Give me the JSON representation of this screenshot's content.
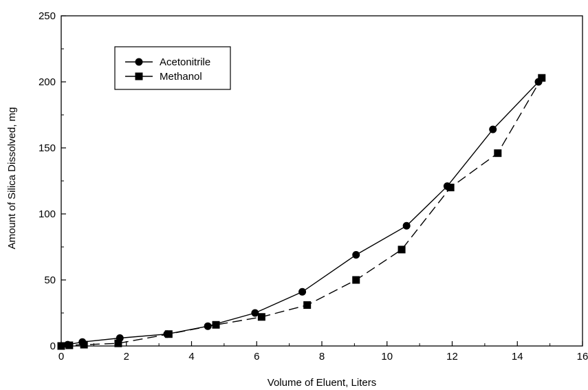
{
  "chart_data": {
    "type": "line",
    "xlabel": "Volume of Eluent, Liters",
    "ylabel": "Amount of Silica Dissolved, mg",
    "xlim": [
      0,
      16
    ],
    "ylim": [
      0,
      250
    ],
    "xticks": [
      "0",
      "2",
      "4",
      "6",
      "8",
      "10",
      "12",
      "14",
      "16"
    ],
    "yticks": [
      "0",
      "50",
      "100",
      "150",
      "200",
      "250"
    ],
    "grid": false,
    "legend_position": "top-left",
    "series": [
      {
        "name": "Acetonitrile",
        "marker": "circle",
        "line_style": "solid",
        "color": "#000000",
        "x": [
          0.0,
          0.2,
          0.65,
          1.8,
          3.25,
          4.5,
          5.95,
          7.4,
          9.05,
          10.6,
          11.85,
          13.25,
          14.65
        ],
        "y": [
          0,
          1,
          3,
          6,
          9,
          15,
          25,
          41,
          69,
          91,
          121,
          164,
          200
        ]
      },
      {
        "name": "Methanol",
        "marker": "square",
        "line_style": "dashed",
        "color": "#000000",
        "x": [
          0.0,
          0.25,
          0.7,
          1.75,
          3.3,
          4.75,
          6.15,
          7.55,
          9.05,
          10.45,
          11.95,
          13.4,
          14.75
        ],
        "y": [
          0,
          0.5,
          1,
          2,
          9,
          16,
          22,
          31,
          50,
          73,
          120,
          146,
          203
        ]
      }
    ]
  }
}
